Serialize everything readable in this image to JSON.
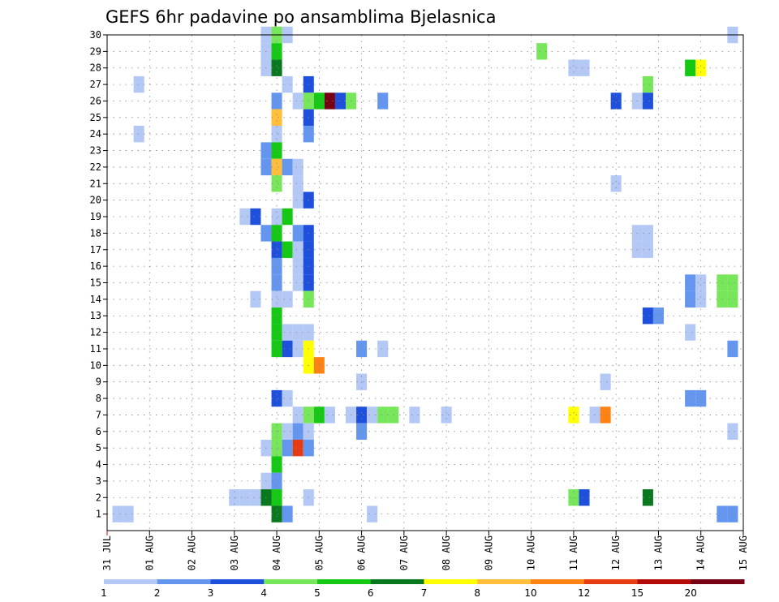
{
  "chart_data": {
    "type": "heatmap",
    "title": "GEFS 6hr padavine po ansamblima Bjelasnica",
    "xlabel": "",
    "ylabel": "",
    "x_tick_labels": [
      "31 JUL",
      "01 AUG",
      "02 AUG",
      "03 AUG",
      "04 AUG",
      "05 AUG",
      "06 AUG",
      "07 AUG",
      "08 AUG",
      "09 AUG",
      "10 AUG",
      "11 AUG",
      "12 AUG",
      "13 AUG",
      "14 AUG",
      "15 AUG"
    ],
    "y_tick_labels": [
      "1",
      "2",
      "3",
      "4",
      "5",
      "6",
      "7",
      "8",
      "9",
      "10",
      "11",
      "12",
      "13",
      "14",
      "15",
      "16",
      "17",
      "18",
      "19",
      "20",
      "21",
      "22",
      "23",
      "24",
      "25",
      "26",
      "27",
      "28",
      "29",
      "30"
    ],
    "xlim": [
      0,
      15
    ],
    "ylim": [
      0,
      30
    ],
    "grid": true,
    "colorbar": {
      "position": "bottom",
      "colors": [
        "#b4c8f5",
        "#6496f0",
        "#1e50dc",
        "#78e65a",
        "#14c814",
        "#0a781e",
        "#ffff00",
        "#ffbe3c",
        "#ff8214",
        "#e63c14",
        "#b40a0a",
        "#780014"
      ],
      "tick_labels": [
        "1",
        "2",
        "3",
        "4",
        "5",
        "6",
        "7",
        "8",
        "10",
        "12",
        "15",
        "20"
      ]
    },
    "cells": [
      {
        "x": 3.75,
        "y": 30,
        "c": 0
      },
      {
        "x": 4.0,
        "y": 30,
        "c": 3
      },
      {
        "x": 4.25,
        "y": 30,
        "c": 0
      },
      {
        "x": 14.75,
        "y": 30,
        "c": 0
      },
      {
        "x": 3.75,
        "y": 29,
        "c": 0
      },
      {
        "x": 4.0,
        "y": 29,
        "c": 4
      },
      {
        "x": 10.25,
        "y": 29,
        "c": 3
      },
      {
        "x": 3.75,
        "y": 28,
        "c": 0
      },
      {
        "x": 4.0,
        "y": 28,
        "c": 5
      },
      {
        "x": 11.0,
        "y": 28,
        "c": 0
      },
      {
        "x": 11.25,
        "y": 28,
        "c": 0
      },
      {
        "x": 13.75,
        "y": 28,
        "c": 4
      },
      {
        "x": 14.0,
        "y": 28,
        "c": 6
      },
      {
        "x": 0.75,
        "y": 27,
        "c": 0
      },
      {
        "x": 4.25,
        "y": 27,
        "c": 0
      },
      {
        "x": 4.75,
        "y": 27,
        "c": 2
      },
      {
        "x": 12.75,
        "y": 27,
        "c": 3
      },
      {
        "x": 4.0,
        "y": 26,
        "c": 1
      },
      {
        "x": 4.5,
        "y": 26,
        "c": 0
      },
      {
        "x": 4.75,
        "y": 26,
        "c": 3
      },
      {
        "x": 5.0,
        "y": 26,
        "c": 4
      },
      {
        "x": 5.25,
        "y": 26,
        "c": 11
      },
      {
        "x": 5.5,
        "y": 26,
        "c": 2
      },
      {
        "x": 5.75,
        "y": 26,
        "c": 3
      },
      {
        "x": 6.5,
        "y": 26,
        "c": 1
      },
      {
        "x": 12.0,
        "y": 26,
        "c": 2
      },
      {
        "x": 12.5,
        "y": 26,
        "c": 0
      },
      {
        "x": 12.75,
        "y": 26,
        "c": 2
      },
      {
        "x": 4.0,
        "y": 25,
        "c": 7
      },
      {
        "x": 4.75,
        "y": 25,
        "c": 2
      },
      {
        "x": 0.75,
        "y": 24,
        "c": 0
      },
      {
        "x": 4.0,
        "y": 24,
        "c": 0
      },
      {
        "x": 4.75,
        "y": 24,
        "c": 1
      },
      {
        "x": 3.75,
        "y": 23,
        "c": 1
      },
      {
        "x": 4.0,
        "y": 23,
        "c": 4
      },
      {
        "x": 3.75,
        "y": 22,
        "c": 1
      },
      {
        "x": 4.0,
        "y": 22,
        "c": 7
      },
      {
        "x": 4.25,
        "y": 22,
        "c": 1
      },
      {
        "x": 4.5,
        "y": 22,
        "c": 0
      },
      {
        "x": 4.0,
        "y": 21,
        "c": 3
      },
      {
        "x": 4.5,
        "y": 21,
        "c": 0
      },
      {
        "x": 12.0,
        "y": 21,
        "c": 0
      },
      {
        "x": 4.5,
        "y": 20,
        "c": 0
      },
      {
        "x": 4.75,
        "y": 20,
        "c": 2
      },
      {
        "x": 3.25,
        "y": 19,
        "c": 0
      },
      {
        "x": 3.5,
        "y": 19,
        "c": 2
      },
      {
        "x": 4.0,
        "y": 19,
        "c": 0
      },
      {
        "x": 4.25,
        "y": 19,
        "c": 4
      },
      {
        "x": 3.75,
        "y": 18,
        "c": 1
      },
      {
        "x": 4.0,
        "y": 18,
        "c": 4
      },
      {
        "x": 4.5,
        "y": 18,
        "c": 1
      },
      {
        "x": 4.75,
        "y": 18,
        "c": 2
      },
      {
        "x": 12.5,
        "y": 18,
        "c": 0
      },
      {
        "x": 12.75,
        "y": 18,
        "c": 0
      },
      {
        "x": 4.0,
        "y": 17,
        "c": 2
      },
      {
        "x": 4.25,
        "y": 17,
        "c": 4
      },
      {
        "x": 4.5,
        "y": 17,
        "c": 0
      },
      {
        "x": 4.75,
        "y": 17,
        "c": 2
      },
      {
        "x": 12.5,
        "y": 17,
        "c": 0
      },
      {
        "x": 12.75,
        "y": 17,
        "c": 0
      },
      {
        "x": 4.0,
        "y": 16,
        "c": 1
      },
      {
        "x": 4.5,
        "y": 16,
        "c": 0
      },
      {
        "x": 4.75,
        "y": 16,
        "c": 2
      },
      {
        "x": 4.0,
        "y": 15,
        "c": 1
      },
      {
        "x": 4.5,
        "y": 15,
        "c": 0
      },
      {
        "x": 4.75,
        "y": 15,
        "c": 2
      },
      {
        "x": 13.75,
        "y": 15,
        "c": 1
      },
      {
        "x": 14.0,
        "y": 15,
        "c": 0
      },
      {
        "x": 14.5,
        "y": 15,
        "c": 3
      },
      {
        "x": 14.75,
        "y": 15,
        "c": 3
      },
      {
        "x": 3.5,
        "y": 14,
        "c": 0
      },
      {
        "x": 4.0,
        "y": 14,
        "c": 0
      },
      {
        "x": 4.25,
        "y": 14,
        "c": 0
      },
      {
        "x": 4.75,
        "y": 14,
        "c": 3
      },
      {
        "x": 13.75,
        "y": 14,
        "c": 1
      },
      {
        "x": 14.0,
        "y": 14,
        "c": 0
      },
      {
        "x": 14.5,
        "y": 14,
        "c": 3
      },
      {
        "x": 14.75,
        "y": 14,
        "c": 3
      },
      {
        "x": 4.0,
        "y": 13,
        "c": 4
      },
      {
        "x": 12.75,
        "y": 13,
        "c": 2
      },
      {
        "x": 13.0,
        "y": 13,
        "c": 1
      },
      {
        "x": 4.0,
        "y": 12,
        "c": 4
      },
      {
        "x": 4.25,
        "y": 12,
        "c": 0
      },
      {
        "x": 4.5,
        "y": 12,
        "c": 0
      },
      {
        "x": 4.75,
        "y": 12,
        "c": 0
      },
      {
        "x": 13.75,
        "y": 12,
        "c": 0
      },
      {
        "x": 4.0,
        "y": 11,
        "c": 4
      },
      {
        "x": 4.25,
        "y": 11,
        "c": 2
      },
      {
        "x": 4.5,
        "y": 11,
        "c": 0
      },
      {
        "x": 4.75,
        "y": 11,
        "c": 6
      },
      {
        "x": 6.0,
        "y": 11,
        "c": 1
      },
      {
        "x": 6.5,
        "y": 11,
        "c": 0
      },
      {
        "x": 14.75,
        "y": 11,
        "c": 1
      },
      {
        "x": 4.75,
        "y": 10,
        "c": 6
      },
      {
        "x": 5.0,
        "y": 10,
        "c": 8
      },
      {
        "x": 6.0,
        "y": 9,
        "c": 0
      },
      {
        "x": 11.75,
        "y": 9,
        "c": 0
      },
      {
        "x": 4.0,
        "y": 8,
        "c": 2
      },
      {
        "x": 4.25,
        "y": 8,
        "c": 0
      },
      {
        "x": 13.75,
        "y": 8,
        "c": 1
      },
      {
        "x": 14.0,
        "y": 8,
        "c": 1
      },
      {
        "x": 4.5,
        "y": 7,
        "c": 0
      },
      {
        "x": 4.75,
        "y": 7,
        "c": 3
      },
      {
        "x": 5.0,
        "y": 7,
        "c": 4
      },
      {
        "x": 5.25,
        "y": 7,
        "c": 0
      },
      {
        "x": 5.75,
        "y": 7,
        "c": 0
      },
      {
        "x": 6.0,
        "y": 7,
        "c": 2
      },
      {
        "x": 6.25,
        "y": 7,
        "c": 0
      },
      {
        "x": 6.5,
        "y": 7,
        "c": 3
      },
      {
        "x": 6.75,
        "y": 7,
        "c": 3
      },
      {
        "x": 7.25,
        "y": 7,
        "c": 0
      },
      {
        "x": 8.0,
        "y": 7,
        "c": 0
      },
      {
        "x": 11.0,
        "y": 7,
        "c": 6
      },
      {
        "x": 11.5,
        "y": 7,
        "c": 0
      },
      {
        "x": 11.75,
        "y": 7,
        "c": 8
      },
      {
        "x": 4.0,
        "y": 6,
        "c": 3
      },
      {
        "x": 4.25,
        "y": 6,
        "c": 0
      },
      {
        "x": 4.5,
        "y": 6,
        "c": 1
      },
      {
        "x": 4.75,
        "y": 6,
        "c": 0
      },
      {
        "x": 6.0,
        "y": 6,
        "c": 1
      },
      {
        "x": 14.75,
        "y": 6,
        "c": 0
      },
      {
        "x": 3.75,
        "y": 5,
        "c": 0
      },
      {
        "x": 4.0,
        "y": 5,
        "c": 3
      },
      {
        "x": 4.25,
        "y": 5,
        "c": 1
      },
      {
        "x": 4.5,
        "y": 5,
        "c": 9
      },
      {
        "x": 4.75,
        "y": 5,
        "c": 1
      },
      {
        "x": 4.0,
        "y": 4,
        "c": 4
      },
      {
        "x": 3.75,
        "y": 3,
        "c": 0
      },
      {
        "x": 4.0,
        "y": 3,
        "c": 1
      },
      {
        "x": 3.0,
        "y": 2,
        "c": 0
      },
      {
        "x": 3.25,
        "y": 2,
        "c": 0
      },
      {
        "x": 3.5,
        "y": 2,
        "c": 0
      },
      {
        "x": 3.75,
        "y": 2,
        "c": 5
      },
      {
        "x": 4.0,
        "y": 2,
        "c": 4
      },
      {
        "x": 4.75,
        "y": 2,
        "c": 0
      },
      {
        "x": 11.0,
        "y": 2,
        "c": 3
      },
      {
        "x": 11.25,
        "y": 2,
        "c": 2
      },
      {
        "x": 12.75,
        "y": 2,
        "c": 5
      },
      {
        "x": 0.25,
        "y": 1,
        "c": 0
      },
      {
        "x": 0.5,
        "y": 1,
        "c": 0
      },
      {
        "x": 4.0,
        "y": 1,
        "c": 5
      },
      {
        "x": 4.25,
        "y": 1,
        "c": 1
      },
      {
        "x": 6.25,
        "y": 1,
        "c": 0
      },
      {
        "x": 14.5,
        "y": 1,
        "c": 1
      },
      {
        "x": 14.75,
        "y": 1,
        "c": 1
      }
    ]
  }
}
